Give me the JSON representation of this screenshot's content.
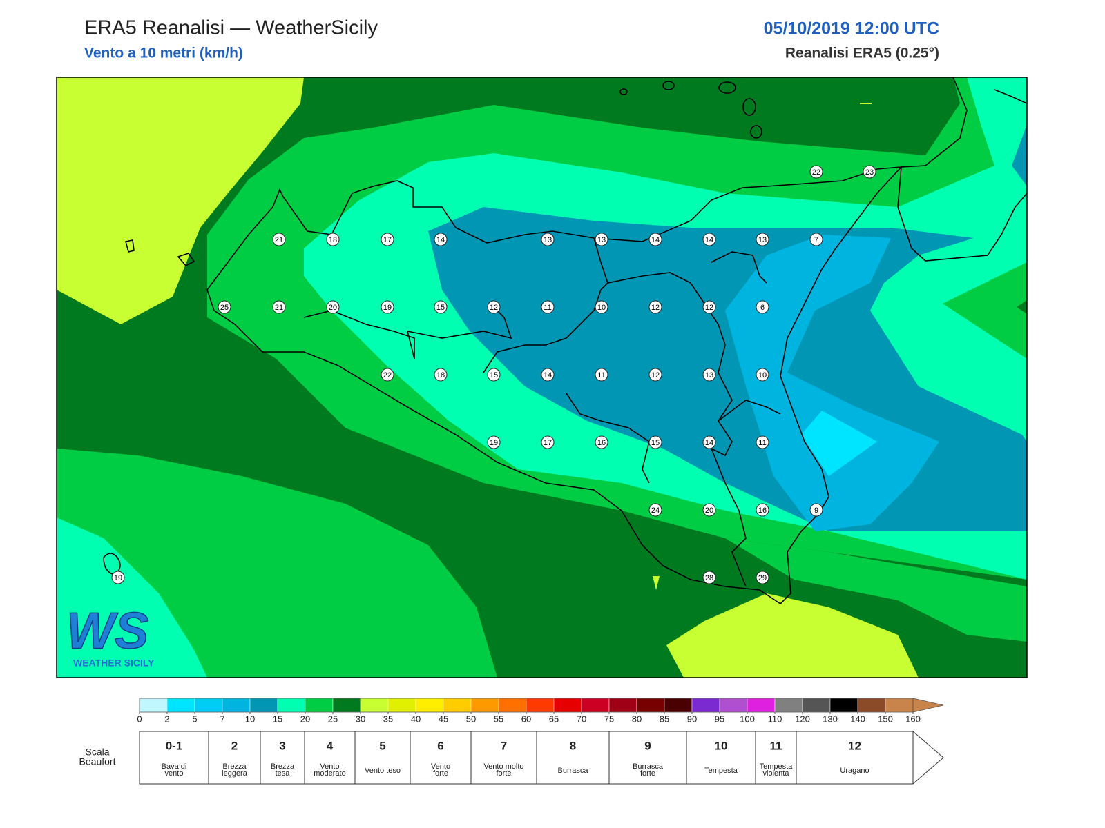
{
  "header": {
    "title": "ERA5 Reanalisi — WeatherSicily",
    "subtitle": "Vento a 10 metri (km/h)",
    "datetime": "05/10/2019 12:00 UTC",
    "source": "Reanalisi ERA5 (0.25°)"
  },
  "map": {
    "stations": [
      22,
      23,
      21,
      18,
      17,
      14,
      13,
      13,
      14,
      14,
      13,
      7,
      25,
      21,
      20,
      19,
      15,
      12,
      11,
      10,
      12,
      12,
      6,
      22,
      18,
      15,
      14,
      11,
      12,
      13,
      10,
      19,
      17,
      16,
      15,
      14,
      11,
      24,
      20,
      16,
      9,
      19,
      28,
      29
    ]
  },
  "logo": {
    "mark": "WS",
    "name": "WEATHER SICILY"
  },
  "colorbar": {
    "ticks": [
      0,
      2,
      5,
      7,
      10,
      15,
      20,
      25,
      30,
      35,
      40,
      45,
      50,
      55,
      60,
      65,
      70,
      75,
      80,
      85,
      90,
      95,
      100,
      110,
      120,
      130,
      140,
      150,
      160
    ],
    "colors": [
      "#c0f7ff",
      "#00e5ff",
      "#00cdf5",
      "#00b4e0",
      "#0096b4",
      "#00ffb0",
      "#00cc44",
      "#007a1e",
      "#c8ff32",
      "#e0f000",
      "#ffee00",
      "#ffcc00",
      "#ff9900",
      "#ff7000",
      "#ff3a00",
      "#e60000",
      "#cc0022",
      "#a00015",
      "#780000",
      "#4a0000",
      "#7a2ad0",
      "#b050d0",
      "#e020e0",
      "#808080",
      "#555555",
      "#000000",
      "#8b4a28",
      "#c8844a"
    ]
  },
  "beaufort": {
    "label": [
      "Scala",
      "Beaufort"
    ],
    "levels": [
      {
        "force": "0-1",
        "desc": [
          "Bava di",
          "vento"
        ]
      },
      {
        "force": 2,
        "desc": [
          "Brezza",
          "leggera"
        ]
      },
      {
        "force": 3,
        "desc": [
          "Brezza",
          "tesa"
        ]
      },
      {
        "force": 4,
        "desc": [
          "Vento",
          "moderato"
        ]
      },
      {
        "force": 5,
        "desc": [
          "Vento teso"
        ]
      },
      {
        "force": 6,
        "desc": [
          "Vento",
          "forte"
        ]
      },
      {
        "force": 7,
        "desc": [
          "Vento molto",
          "forte"
        ]
      },
      {
        "force": 8,
        "desc": [
          "Burrasca"
        ]
      },
      {
        "force": 9,
        "desc": [
          "Burrasca",
          "forte"
        ]
      },
      {
        "force": 10,
        "desc": [
          "Tempesta"
        ]
      },
      {
        "force": 11,
        "desc": [
          "Tempesta",
          "violenta"
        ]
      },
      {
        "force": 12,
        "desc": [
          "Uragano"
        ]
      }
    ]
  }
}
